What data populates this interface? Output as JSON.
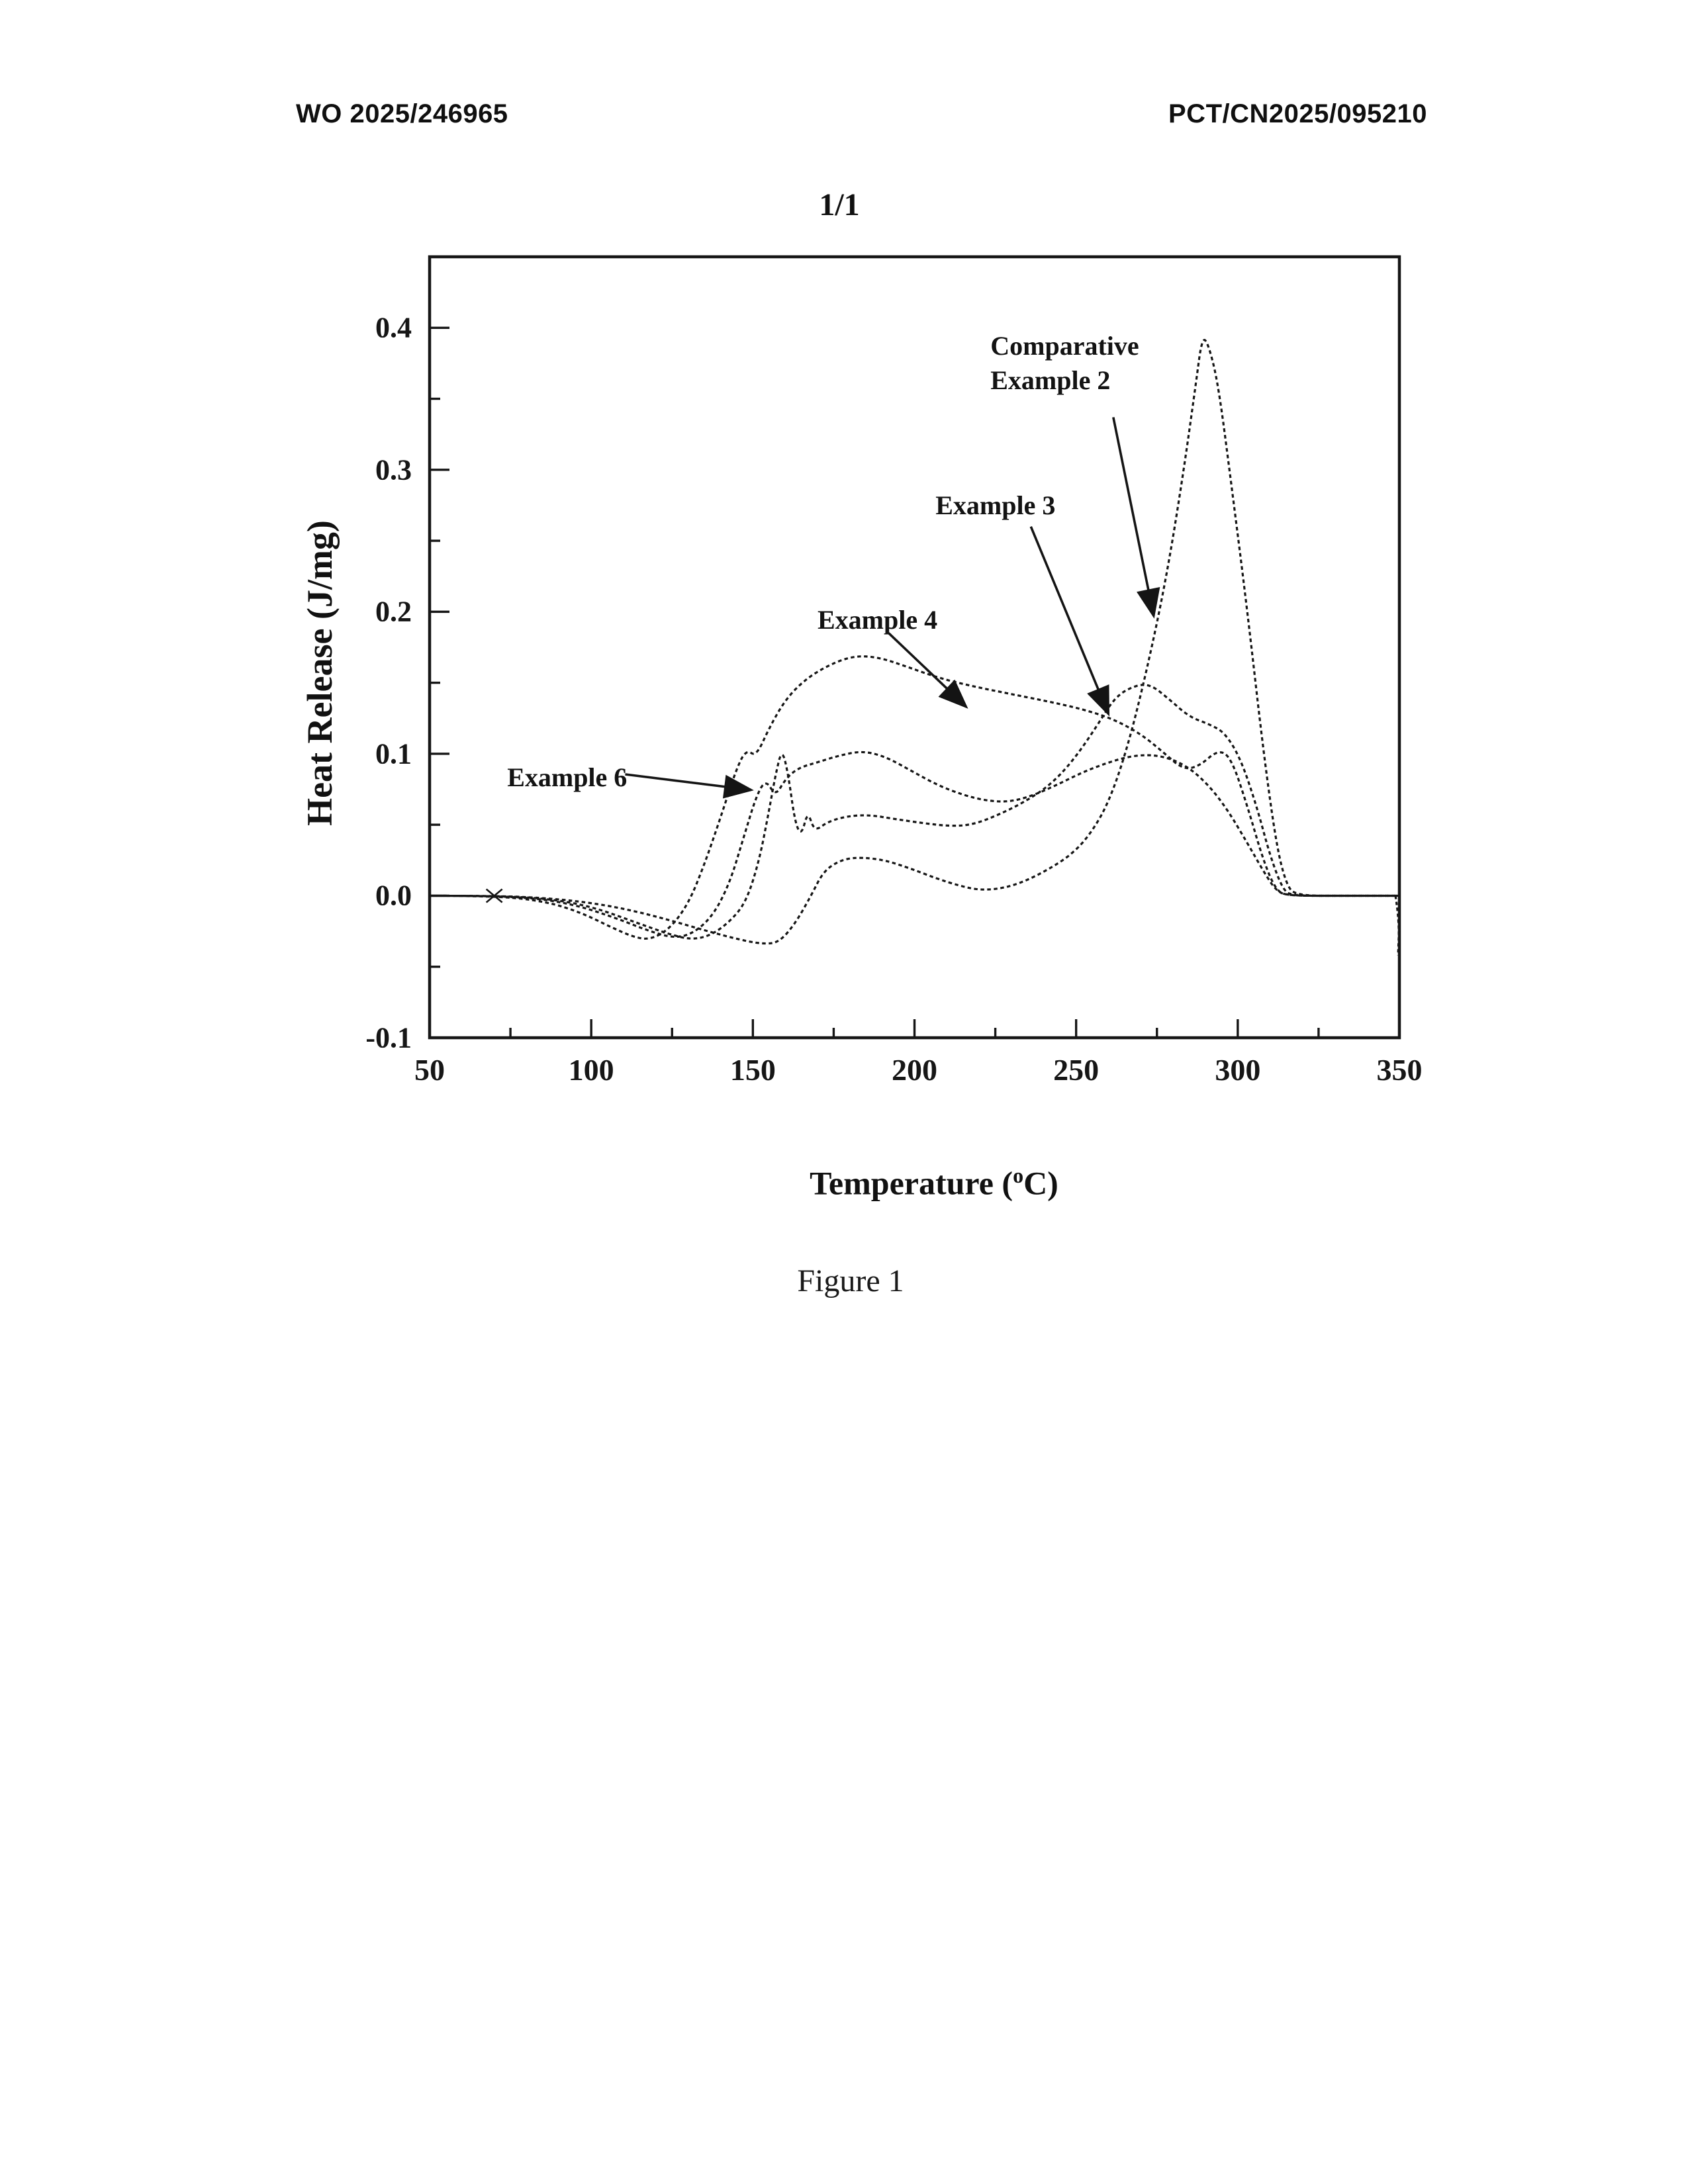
{
  "header": {
    "left": "WO 2025/246965",
    "right": "PCT/CN2025/095210",
    "sheet": "1/1"
  },
  "figure": {
    "caption": "Figure 1"
  },
  "chart_data": {
    "type": "line",
    "title": "",
    "xlabel": "Temperature (°C)",
    "ylabel": "Heat Release (J/mg)",
    "xlim": [
      50,
      350
    ],
    "ylim": [
      -0.1,
      0.45
    ],
    "x_ticks": [
      50,
      100,
      150,
      200,
      250,
      300,
      350
    ],
    "x_minor_ticks": [
      75,
      125,
      175,
      225,
      275,
      325
    ],
    "y_ticks": [
      -0.1,
      0.0,
      0.1,
      0.2,
      0.3,
      0.4
    ],
    "y_minor_ticks": [
      -0.05,
      0.05,
      0.15,
      0.25,
      0.35
    ],
    "grid": false,
    "legend_position": "in-plot arrow annotations",
    "line_style": "dotted-dash (scanned)",
    "ink_color": "#161616",
    "series": [
      {
        "name": "Comparative Example 2",
        "points": [
          [
            50,
            0
          ],
          [
            72,
            0
          ],
          [
            88,
            -0.002
          ],
          [
            100,
            -0.005
          ],
          [
            112,
            -0.01
          ],
          [
            124,
            -0.017
          ],
          [
            136,
            -0.025
          ],
          [
            146,
            -0.031
          ],
          [
            153,
            -0.034
          ],
          [
            158,
            -0.033
          ],
          [
            163,
            -0.02
          ],
          [
            168,
            0.0
          ],
          [
            172,
            0.018
          ],
          [
            178,
            0.026
          ],
          [
            184,
            0.027
          ],
          [
            191,
            0.025
          ],
          [
            199,
            0.019
          ],
          [
            207,
            0.012
          ],
          [
            214,
            0.007
          ],
          [
            220,
            0.004
          ],
          [
            227,
            0.005
          ],
          [
            234,
            0.01
          ],
          [
            241,
            0.018
          ],
          [
            248,
            0.028
          ],
          [
            254,
            0.042
          ],
          [
            260,
            0.065
          ],
          [
            266,
            0.105
          ],
          [
            272,
            0.16
          ],
          [
            278,
            0.225
          ],
          [
            283,
            0.295
          ],
          [
            287,
            0.36
          ],
          [
            289,
            0.394
          ],
          [
            291,
            0.388
          ],
          [
            294,
            0.36
          ],
          [
            298,
            0.29
          ],
          [
            303,
            0.2
          ],
          [
            308,
            0.1
          ],
          [
            312,
            0.035
          ],
          [
            315,
            0.008
          ],
          [
            318,
            0
          ],
          [
            334,
            0
          ],
          [
            350,
            0
          ]
        ]
      },
      {
        "name": "Example 3",
        "points": [
          [
            50,
            0
          ],
          [
            74,
            0
          ],
          [
            90,
            -0.003
          ],
          [
            102,
            -0.009
          ],
          [
            114,
            -0.019
          ],
          [
            124,
            -0.027
          ],
          [
            131,
            -0.031
          ],
          [
            137,
            -0.028
          ],
          [
            143,
            -0.018
          ],
          [
            148,
            -0.004
          ],
          [
            152,
            0.025
          ],
          [
            155,
            0.06
          ],
          [
            157,
            0.085
          ],
          [
            159,
            0.104
          ],
          [
            161,
            0.085
          ],
          [
            163,
            0.052
          ],
          [
            165,
            0.042
          ],
          [
            167,
            0.06
          ],
          [
            169,
            0.045
          ],
          [
            173,
            0.052
          ],
          [
            179,
            0.056
          ],
          [
            186,
            0.057
          ],
          [
            194,
            0.054
          ],
          [
            203,
            0.051
          ],
          [
            211,
            0.049
          ],
          [
            218,
            0.05
          ],
          [
            226,
            0.057
          ],
          [
            234,
            0.066
          ],
          [
            242,
            0.078
          ],
          [
            249,
            0.095
          ],
          [
            256,
            0.118
          ],
          [
            262,
            0.14
          ],
          [
            268,
            0.148
          ],
          [
            273,
            0.149
          ],
          [
            279,
            0.138
          ],
          [
            285,
            0.126
          ],
          [
            291,
            0.121
          ],
          [
            296,
            0.115
          ],
          [
            301,
            0.096
          ],
          [
            306,
            0.062
          ],
          [
            310,
            0.028
          ],
          [
            314,
            0.004
          ],
          [
            317,
            0
          ],
          [
            334,
            0
          ],
          [
            350,
            0
          ]
        ]
      },
      {
        "name": "Example 4",
        "points": [
          [
            50,
            0
          ],
          [
            70,
            0
          ],
          [
            86,
            -0.004
          ],
          [
            97,
            -0.012
          ],
          [
            106,
            -0.022
          ],
          [
            113,
            -0.029
          ],
          [
            118,
            -0.031
          ],
          [
            124,
            -0.024
          ],
          [
            130,
            -0.006
          ],
          [
            135,
            0.022
          ],
          [
            140,
            0.055
          ],
          [
            145,
            0.09
          ],
          [
            148,
            0.103
          ],
          [
            151,
            0.098
          ],
          [
            155,
            0.118
          ],
          [
            160,
            0.138
          ],
          [
            166,
            0.152
          ],
          [
            173,
            0.162
          ],
          [
            181,
            0.169
          ],
          [
            189,
            0.168
          ],
          [
            198,
            0.161
          ],
          [
            208,
            0.153
          ],
          [
            219,
            0.147
          ],
          [
            230,
            0.142
          ],
          [
            241,
            0.137
          ],
          [
            251,
            0.132
          ],
          [
            261,
            0.125
          ],
          [
            270,
            0.114
          ],
          [
            277,
            0.101
          ],
          [
            283,
            0.089
          ],
          [
            288,
            0.091
          ],
          [
            294,
            0.103
          ],
          [
            298,
            0.097
          ],
          [
            303,
            0.063
          ],
          [
            308,
            0.024
          ],
          [
            312,
            0.003
          ],
          [
            316,
            0
          ],
          [
            333,
            0
          ],
          [
            350,
            0
          ]
        ]
      },
      {
        "name": "Example 6",
        "points": [
          [
            50,
            0
          ],
          [
            68,
            0
          ],
          [
            84,
            -0.002
          ],
          [
            96,
            -0.007
          ],
          [
            108,
            -0.016
          ],
          [
            118,
            -0.025
          ],
          [
            126,
            -0.03
          ],
          [
            132,
            -0.026
          ],
          [
            138,
            -0.013
          ],
          [
            143,
            0.01
          ],
          [
            147,
            0.04
          ],
          [
            151,
            0.07
          ],
          [
            154,
            0.082
          ],
          [
            157,
            0.07
          ],
          [
            160,
            0.082
          ],
          [
            164,
            0.09
          ],
          [
            170,
            0.094
          ],
          [
            177,
            0.099
          ],
          [
            184,
            0.102
          ],
          [
            191,
            0.098
          ],
          [
            199,
            0.088
          ],
          [
            207,
            0.078
          ],
          [
            215,
            0.071
          ],
          [
            222,
            0.067
          ],
          [
            229,
            0.066
          ],
          [
            236,
            0.07
          ],
          [
            244,
            0.078
          ],
          [
            252,
            0.087
          ],
          [
            260,
            0.094
          ],
          [
            268,
            0.099
          ],
          [
            276,
            0.099
          ],
          [
            284,
            0.092
          ],
          [
            291,
            0.078
          ],
          [
            297,
            0.06
          ],
          [
            303,
            0.037
          ],
          [
            308,
            0.017
          ],
          [
            312,
            0.003
          ],
          [
            316,
            0
          ],
          [
            332,
            0
          ],
          [
            350,
            0
          ]
        ]
      }
    ],
    "annotations": [
      {
        "name": "comparative-example-2",
        "lines": [
          "Comparative",
          "Example 2"
        ],
        "label_at": [
          223.5,
          0.399
        ],
        "arrow_from": [
          261.5,
          0.337
        ],
        "arrow_to": [
          274,
          0.197
        ]
      },
      {
        "name": "example-3",
        "lines": [
          "Example 3"
        ],
        "label_at": [
          206.5,
          0.287
        ],
        "arrow_from": [
          236,
          0.26
        ],
        "arrow_to": [
          260,
          0.128
        ]
      },
      {
        "name": "example-4",
        "lines": [
          "Example 4"
        ],
        "label_at": [
          170,
          0.206
        ],
        "arrow_from": [
          192,
          0.185
        ],
        "arrow_to": [
          216,
          0.133
        ]
      },
      {
        "name": "example-6",
        "lines": [
          "Example 6"
        ],
        "label_at": [
          74,
          0.0955
        ],
        "arrow_from": [
          110.5,
          0.0855
        ],
        "arrow_to": [
          149.5,
          0.0745
        ]
      }
    ],
    "artifacts": {
      "baseline_start_marker_T": 70,
      "right_edge_tail": [
        [
          348.8,
          0
        ],
        [
          350,
          -0.018
        ],
        [
          349.6,
          -0.042
        ]
      ]
    }
  }
}
